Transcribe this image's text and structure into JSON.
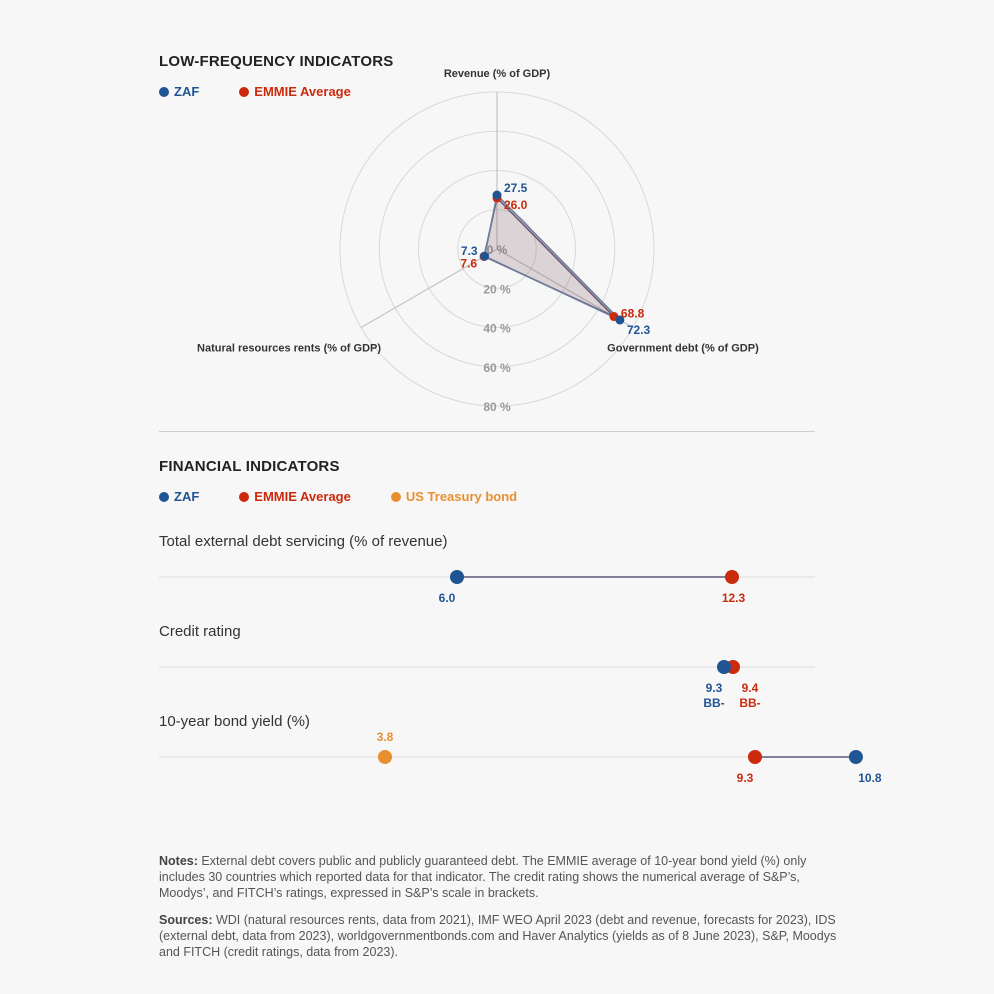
{
  "colors": {
    "zaf": "#1f5592",
    "emmie": "#cc2a0c",
    "us": "#e8902f",
    "grid": "#d8d8d8",
    "tick": "#999999"
  },
  "low_frequency": {
    "title": "LOW-FREQUENCY INDICATORS",
    "legend": [
      "ZAF",
      "EMMIE Average"
    ]
  },
  "financial": {
    "title": "FINANCIAL INDICATORS",
    "legend": [
      "ZAF",
      "EMMIE Average",
      "US Treasury bond"
    ]
  },
  "chart_data": [
    {
      "type": "radar",
      "axes": [
        "Revenue (% of GDP)",
        "Government debt (% of GDP)",
        "Natural resources rents (% of GDP)"
      ],
      "radial_ticks": [
        "0 %",
        "20 %",
        "40 %",
        "60 %",
        "80 %"
      ],
      "rmax": 80,
      "series": [
        {
          "name": "ZAF",
          "values": [
            27.5,
            72.3,
            7.3
          ],
          "labels": [
            "27.5",
            "72.3",
            "7.3"
          ]
        },
        {
          "name": "EMMIE Average",
          "values": [
            26.0,
            68.8,
            7.6
          ],
          "labels": [
            "26.0",
            "68.8",
            "7.6"
          ]
        }
      ]
    },
    {
      "type": "dot",
      "title": "Total external debt servicing (% of revenue)",
      "points": [
        {
          "series": "ZAF",
          "value": 6.0,
          "label": "6.0"
        },
        {
          "series": "EMMIE Average",
          "value": 12.3,
          "label": "12.3"
        }
      ]
    },
    {
      "type": "dot",
      "title": "Credit rating",
      "points": [
        {
          "series": "ZAF",
          "value": 9.3,
          "label": "9.3",
          "sublabel": "BB-"
        },
        {
          "series": "EMMIE Average",
          "value": 9.4,
          "label": "9.4",
          "sublabel": "BB-"
        }
      ]
    },
    {
      "type": "dot",
      "title": "10-year bond yield (%)",
      "points": [
        {
          "series": "US Treasury bond",
          "value": 3.8,
          "label": "3.8"
        },
        {
          "series": "EMMIE Average",
          "value": 9.3,
          "label": "9.3"
        },
        {
          "series": "ZAF",
          "value": 10.8,
          "label": "10.8"
        }
      ]
    }
  ],
  "notes": {
    "notes_label": "Notes:",
    "notes_text": " External debt covers public and publicly guaranteed debt. The EMMIE average of 10-year bond yield (%) only includes 30 countries which reported data for that indicator. The credit rating shows the numerical average of S&P’s, Moodys’, and FITCH’s ratings, expressed in S&P’s scale in brackets.",
    "sources_label": "Sources:",
    "sources_text": " WDI (natural resources rents, data from 2021), IMF WEO April 2023 (debt and revenue, forecasts for 2023), IDS (external debt, data from 2023), worldgovernmentbonds.com and Haver Analytics (yields as of 8 June 2023), S&P, Moodys and FITCH (credit ratings, data from 2023)."
  }
}
